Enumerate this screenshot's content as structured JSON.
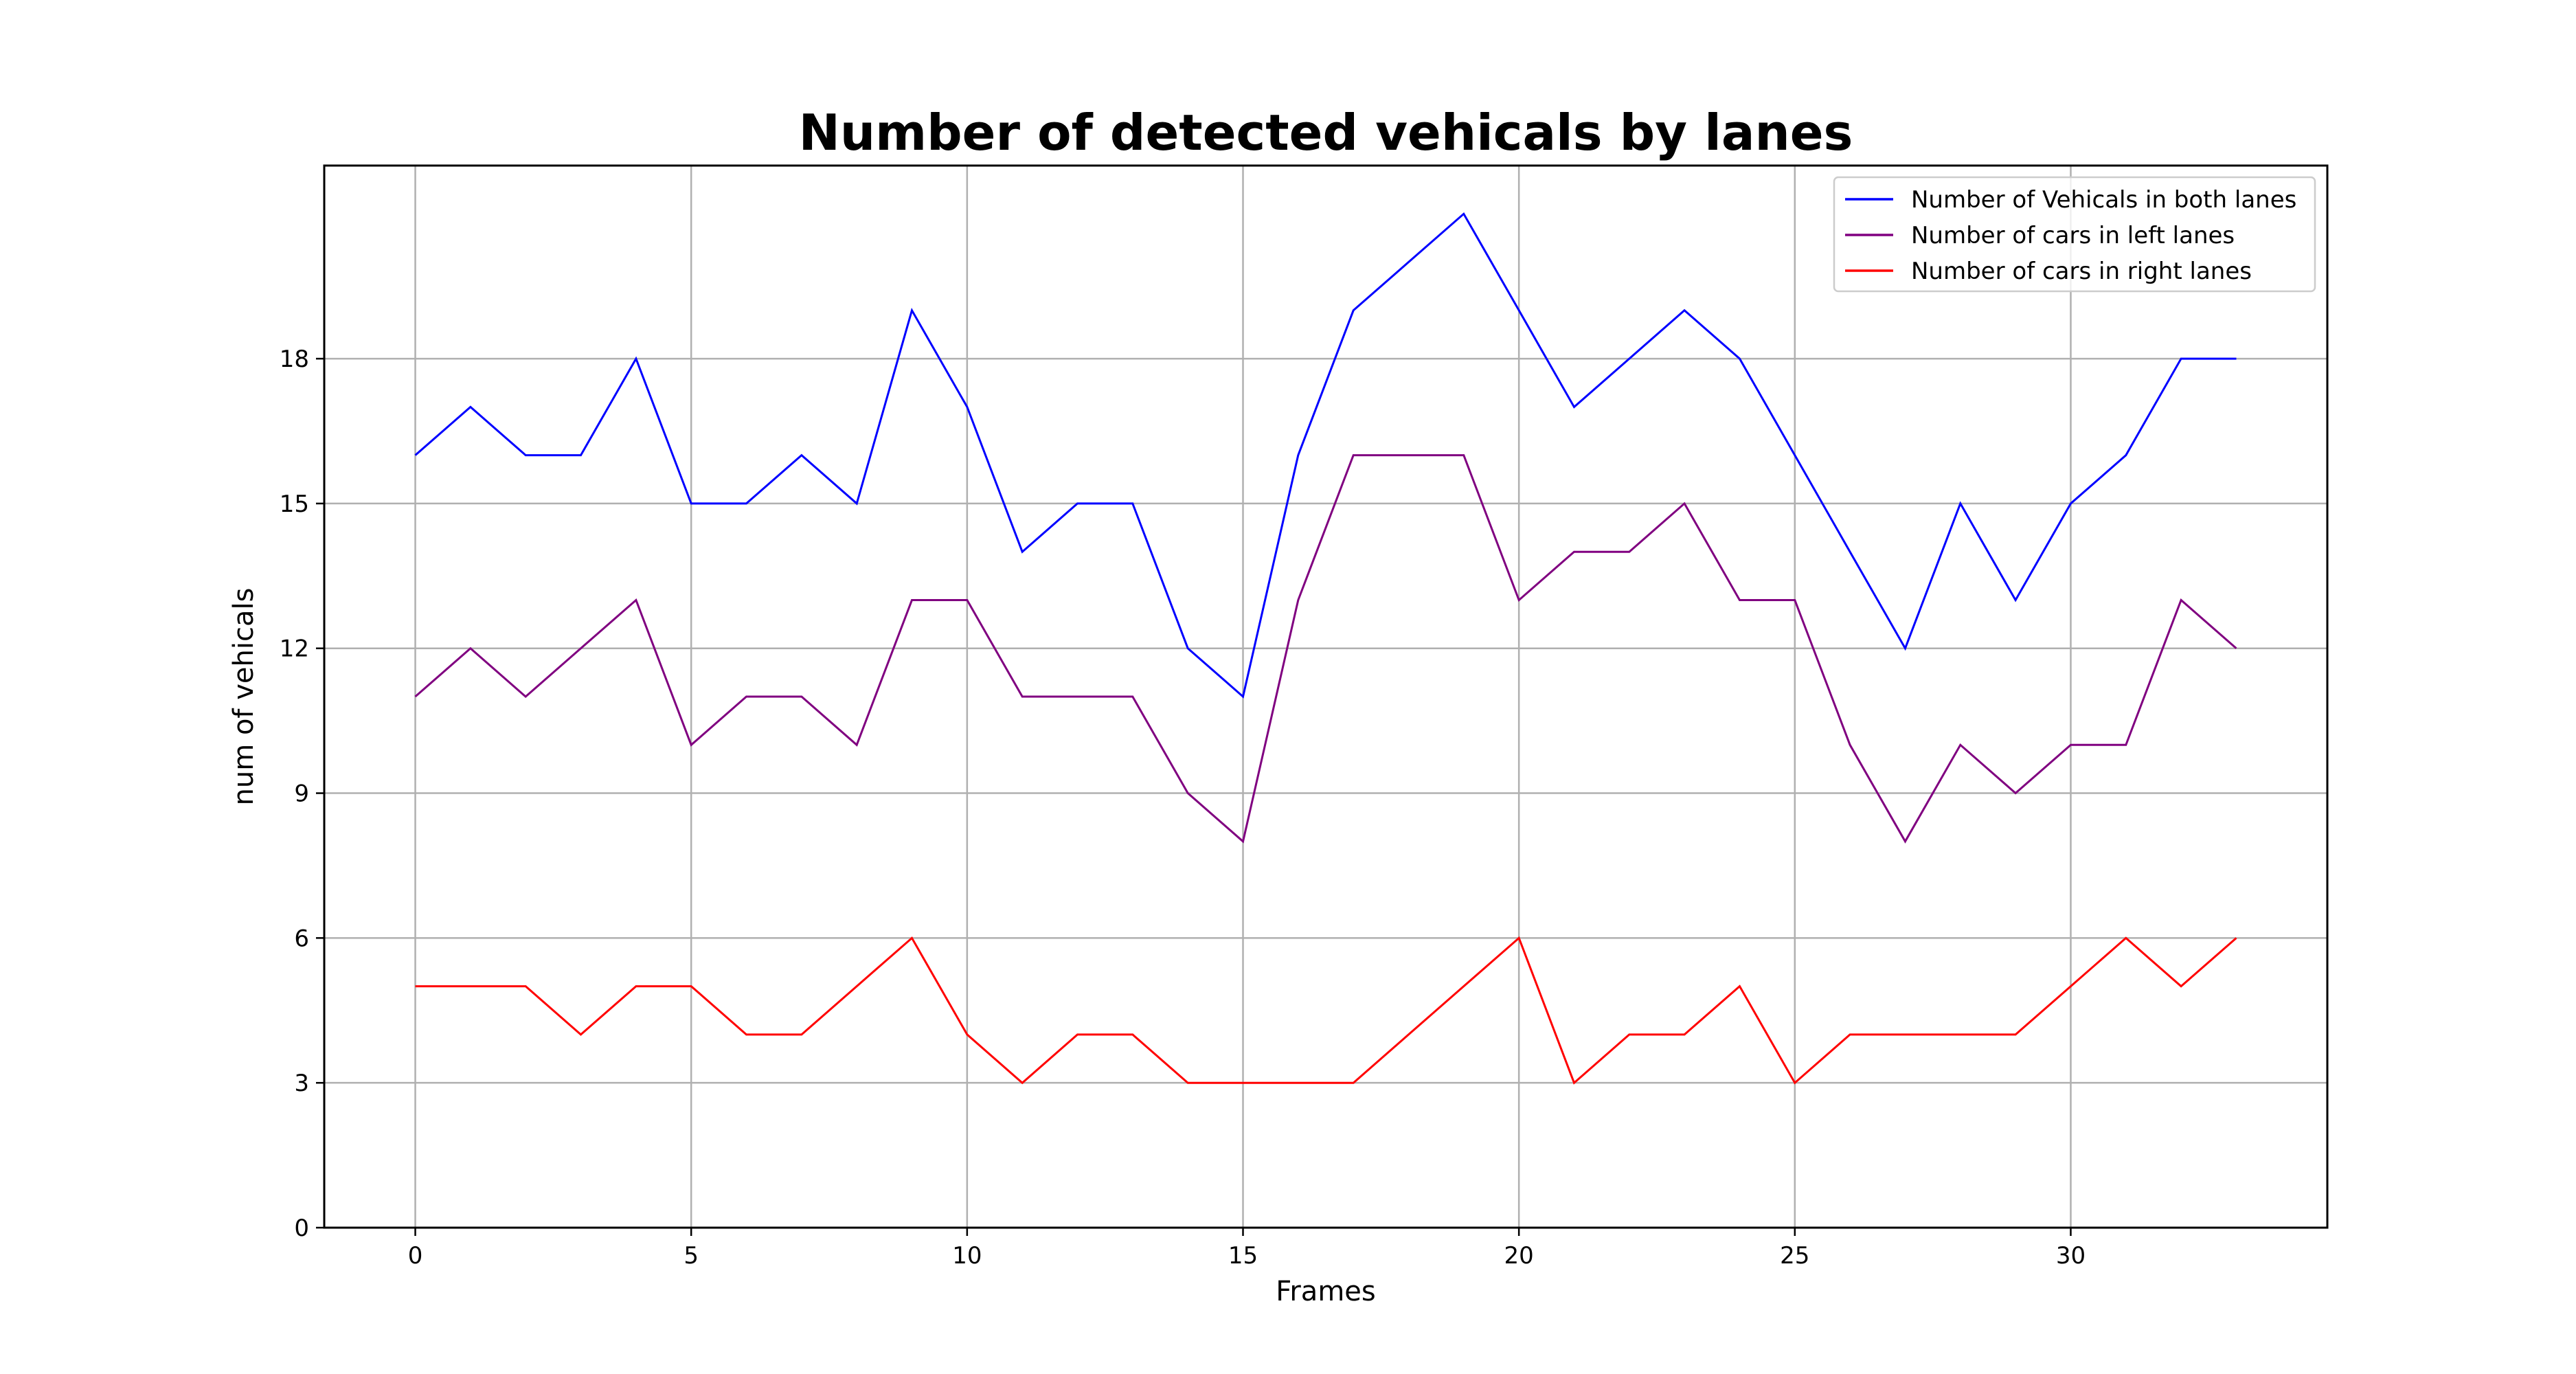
{
  "chart_data": {
    "type": "line",
    "title": "Number of detected vehicals by lanes",
    "xlabel": "Frames",
    "ylabel": "num of vehicals",
    "xlim": [
      -1.65,
      34.65
    ],
    "ylim": [
      0,
      22
    ],
    "xticks": [
      0,
      5,
      10,
      15,
      20,
      25,
      30
    ],
    "yticks": [
      0,
      3,
      6,
      9,
      12,
      15,
      18
    ],
    "grid": true,
    "legend_position": "top-right",
    "x": [
      0,
      1,
      2,
      3,
      4,
      5,
      6,
      7,
      8,
      9,
      10,
      11,
      12,
      13,
      14,
      15,
      16,
      17,
      18,
      19,
      20,
      21,
      22,
      23,
      24,
      25,
      26,
      27,
      28,
      29,
      30,
      31,
      32,
      33
    ],
    "series": [
      {
        "name": "Number of Vehicals in both lanes",
        "color": "#0000ff",
        "values": [
          16,
          17,
          16,
          16,
          18,
          15,
          15,
          16,
          15,
          19,
          17,
          14,
          15,
          15,
          12,
          11,
          16,
          19,
          20,
          21,
          19,
          17,
          18,
          19,
          18,
          16,
          14,
          12,
          15,
          13,
          15,
          16,
          18,
          18
        ]
      },
      {
        "name": "Number of cars in left lanes",
        "color": "#800080",
        "values": [
          11,
          12,
          11,
          12,
          13,
          10,
          11,
          11,
          10,
          13,
          13,
          11,
          11,
          11,
          9,
          8,
          13,
          16,
          16,
          16,
          13,
          14,
          14,
          15,
          13,
          13,
          10,
          8,
          10,
          9,
          10,
          10,
          13,
          12
        ]
      },
      {
        "name": "Number of cars in right lanes",
        "color": "#ff0000",
        "values": [
          5,
          5,
          5,
          4,
          5,
          5,
          4,
          4,
          5,
          6,
          4,
          3,
          4,
          4,
          3,
          3,
          3,
          3,
          4,
          5,
          6,
          3,
          4,
          4,
          5,
          3,
          4,
          4,
          4,
          4,
          5,
          6,
          5,
          6
        ]
      }
    ]
  }
}
